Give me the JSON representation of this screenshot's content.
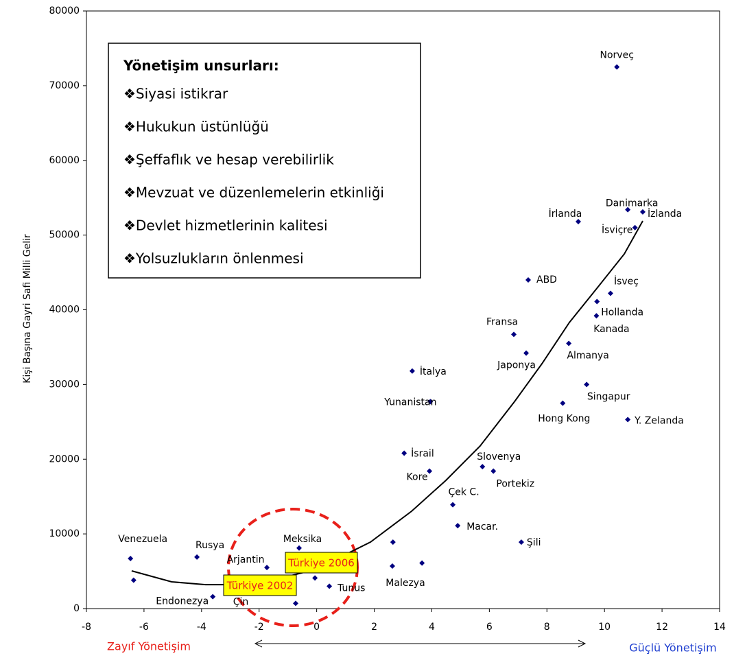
{
  "chart_data": {
    "type": "scatter",
    "ylabel": "Kişi Başına Gayri Safi Milli Gelir",
    "x_axis_notes": {
      "left": "Zayıf Yönetişim",
      "right": "Güçlü Yönetişim"
    },
    "xlim": [
      -8,
      14
    ],
    "xticks": [
      -8,
      -6,
      -4,
      -2,
      0,
      2,
      4,
      6,
      8,
      10,
      12,
      14
    ],
    "ylim": [
      0,
      80000
    ],
    "yticks": [
      0,
      10000,
      20000,
      30000,
      40000,
      50000,
      60000,
      70000,
      80000
    ],
    "color": "#000080",
    "labels": [
      "Norveç",
      "Danimarka",
      "İzlanda",
      "İsviçre",
      "İrlanda",
      "ABD",
      "İsveç",
      "Hollanda",
      "Kanada",
      "Fransa",
      "Almanya",
      "Japonya",
      "İtalya",
      "Singapur",
      "Yunanistan",
      "Hong Kong",
      "Y. Zelanda",
      "İsrail",
      "Kore",
      "Slovenya",
      "Portekiz",
      "Çek C.",
      "Macar.",
      "Şili",
      null,
      "Malezya",
      null,
      "Meksika",
      "Venezuela",
      null,
      "Rusya",
      "Arjantin",
      null,
      "Tunus",
      "Çin",
      "Endonezya"
    ],
    "x": [
      10.43,
      10.81,
      11.33,
      11.06,
      9.09,
      7.35,
      10.21,
      9.74,
      9.72,
      6.85,
      8.76,
      7.28,
      3.32,
      9.38,
      3.95,
      8.55,
      10.81,
      3.04,
      3.92,
      5.76,
      6.14,
      4.73,
      4.9,
      7.11,
      2.65,
      2.63,
      3.66,
      -0.61,
      -6.47,
      -6.36,
      -4.16,
      -1.73,
      -0.06,
      0.44,
      -0.73,
      -3.61
    ],
    "y": [
      72500,
      53400,
      53100,
      51000,
      51800,
      44000,
      42200,
      41100,
      39200,
      36700,
      35500,
      34200,
      31800,
      30000,
      27700,
      27500,
      25300,
      20800,
      18400,
      19000,
      18400,
      13900,
      11100,
      8900,
      8900,
      5700,
      6100,
      8100,
      6700,
      3800,
      6900,
      5500,
      4100,
      3000,
      700,
      1600
    ],
    "trendline": {
      "x": [
        -6.43,
        -5.04,
        -3.86,
        -2.91,
        -1.47,
        -0.04,
        1.87,
        3.3,
        4.49,
        5.68,
        6.88,
        7.83,
        8.78,
        9.74,
        10.69,
        11.33
      ],
      "y": [
        5050,
        3580,
        3210,
        3210,
        3860,
        5240,
        8910,
        13040,
        17170,
        21770,
        27740,
        32790,
        38300,
        42890,
        47480,
        51890
      ]
    },
    "annotations": [
      "Türkiye 2002",
      "Türkiye 2006"
    ],
    "legend_box": {
      "title": "Yönetişim unsurları:",
      "items": [
        "❖Siyasi istikrar",
        "❖Hukukun üstünlüğü",
        "❖Şeffaflık ve hesap verebilirlik",
        "❖Mevzuat ve düzenlemelerin etkinliği",
        "❖Devlet hizmetlerinin kalitesi",
        "❖Yolsuzlukların önlenmesi"
      ]
    }
  }
}
